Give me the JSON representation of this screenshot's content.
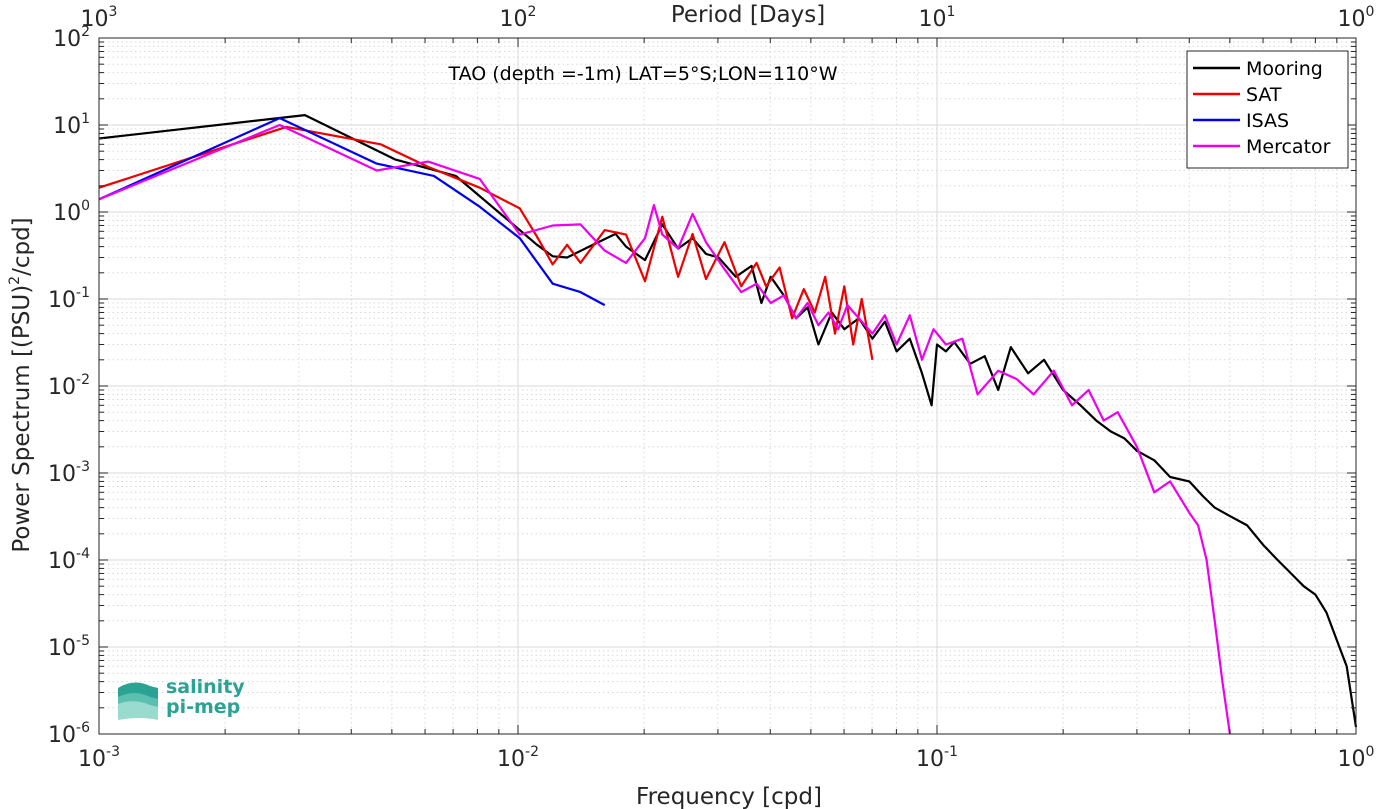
{
  "chart_data": {
    "type": "line",
    "title": "TAO (depth =-1m) LAT=5°S;LON=110°W",
    "xlabel": "Frequency [cpd]",
    "ylabel": "Power Spectrum [(PSU)",
    "ylabel_sup": "2",
    "ylabel_suffix": "/cpd]",
    "top_xlabel": "Period [Days]",
    "xscale": "log",
    "yscale": "log",
    "xlim": [
      0.001,
      1
    ],
    "ylim": [
      1e-06,
      100
    ],
    "grid": true,
    "legend_position": "top-right",
    "x_ticks": [
      {
        "base": "10",
        "exp": "-3"
      },
      {
        "base": "10",
        "exp": "-2"
      },
      {
        "base": "10",
        "exp": "-1"
      },
      {
        "base": "10",
        "exp": "0"
      }
    ],
    "top_ticks": [
      {
        "base": "10",
        "exp": "3"
      },
      {
        "base": "10",
        "exp": "2"
      },
      {
        "base": "10",
        "exp": "1"
      },
      {
        "base": "10",
        "exp": "0"
      }
    ],
    "y_ticks": [
      {
        "base": "10",
        "exp": "-6"
      },
      {
        "base": "10",
        "exp": "-5"
      },
      {
        "base": "10",
        "exp": "-4"
      },
      {
        "base": "10",
        "exp": "-3"
      },
      {
        "base": "10",
        "exp": "-2"
      },
      {
        "base": "10",
        "exp": "-1"
      },
      {
        "base": "10",
        "exp": "0"
      },
      {
        "base": "10",
        "exp": "1"
      },
      {
        "base": "10",
        "exp": "2"
      }
    ],
    "series": [
      {
        "name": "Mooring",
        "color": "#000000",
        "x": [
          0.001,
          0.0031,
          0.0051,
          0.0071,
          0.0101,
          0.0111,
          0.0121,
          0.0131,
          0.0151,
          0.0171,
          0.0181,
          0.0201,
          0.0221,
          0.0241,
          0.0261,
          0.0281,
          0.0301,
          0.0331,
          0.0361,
          0.0381,
          0.0401,
          0.0431,
          0.0461,
          0.0491,
          0.0521,
          0.0561,
          0.0601,
          0.0651,
          0.0701,
          0.0751,
          0.0801,
          0.0861,
          0.0921,
          0.0971,
          0.1,
          0.105,
          0.11,
          0.12,
          0.13,
          0.14,
          0.15,
          0.165,
          0.18,
          0.2,
          0.22,
          0.24,
          0.26,
          0.28,
          0.3,
          0.33,
          0.36,
          0.4,
          0.43,
          0.46,
          0.5,
          0.55,
          0.6,
          0.65,
          0.7,
          0.75,
          0.8,
          0.85,
          0.9,
          0.95,
          1.0
        ],
        "values": [
          7.0,
          13.0,
          4.0,
          2.6,
          0.62,
          0.42,
          0.31,
          0.3,
          0.42,
          0.56,
          0.4,
          0.28,
          0.72,
          0.38,
          0.5,
          0.33,
          0.3,
          0.18,
          0.24,
          0.09,
          0.18,
          0.11,
          0.06,
          0.08,
          0.03,
          0.07,
          0.045,
          0.06,
          0.035,
          0.055,
          0.025,
          0.035,
          0.014,
          0.006,
          0.03,
          0.025,
          0.032,
          0.018,
          0.022,
          0.009,
          0.028,
          0.014,
          0.02,
          0.009,
          0.006,
          0.004,
          0.003,
          0.0025,
          0.0018,
          0.0014,
          0.0009,
          0.0008,
          0.00055,
          0.0004,
          0.00032,
          0.00025,
          0.00015,
          0.0001,
          7e-05,
          5e-05,
          4e-05,
          2.5e-05,
          1.2e-05,
          6e-06,
          1.2e-06
        ]
      },
      {
        "name": "SAT",
        "color": "#ee0000",
        "x": [
          0.001,
          0.0028,
          0.0047,
          0.0061,
          0.0081,
          0.0101,
          0.0111,
          0.0121,
          0.0131,
          0.0141,
          0.0161,
          0.0181,
          0.0201,
          0.0221,
          0.0241,
          0.0261,
          0.0281,
          0.0311,
          0.0341,
          0.0371,
          0.0391,
          0.0421,
          0.0451,
          0.0481,
          0.0511,
          0.0541,
          0.0571,
          0.0601,
          0.0631,
          0.0661,
          0.0701
        ],
        "values": [
          1.9,
          9.5,
          6.0,
          3.3,
          1.9,
          1.1,
          0.52,
          0.25,
          0.42,
          0.26,
          0.62,
          0.55,
          0.16,
          0.88,
          0.18,
          0.56,
          0.17,
          0.45,
          0.14,
          0.26,
          0.14,
          0.23,
          0.06,
          0.13,
          0.07,
          0.18,
          0.04,
          0.14,
          0.03,
          0.1,
          0.02
        ]
      },
      {
        "name": "ISAS",
        "color": "#0000ee",
        "x": [
          0.001,
          0.0027,
          0.0046,
          0.0063,
          0.0081,
          0.0101,
          0.0121,
          0.0141,
          0.0161
        ],
        "values": [
          1.4,
          12.0,
          3.6,
          2.6,
          1.15,
          0.5,
          0.15,
          0.12,
          0.085
        ]
      },
      {
        "name": "Mercator",
        "color": "#ee00ee",
        "x": [
          0.001,
          0.0027,
          0.0046,
          0.0061,
          0.0081,
          0.0101,
          0.0121,
          0.0141,
          0.0161,
          0.0181,
          0.0201,
          0.0211,
          0.0221,
          0.0241,
          0.0261,
          0.0281,
          0.0311,
          0.0341,
          0.0371,
          0.0401,
          0.0431,
          0.0461,
          0.0491,
          0.0521,
          0.0551,
          0.0581,
          0.0611,
          0.0651,
          0.0701,
          0.0751,
          0.0801,
          0.0861,
          0.0921,
          0.0981,
          0.105,
          0.115,
          0.125,
          0.14,
          0.155,
          0.17,
          0.19,
          0.21,
          0.23,
          0.25,
          0.27,
          0.3,
          0.33,
          0.36,
          0.4,
          0.42,
          0.44,
          0.46,
          0.48,
          0.5
        ],
        "values": [
          1.4,
          10.0,
          3.0,
          3.8,
          2.4,
          0.55,
          0.7,
          0.72,
          0.36,
          0.26,
          0.5,
          1.2,
          0.55,
          0.38,
          0.95,
          0.45,
          0.22,
          0.12,
          0.15,
          0.09,
          0.11,
          0.06,
          0.09,
          0.05,
          0.07,
          0.045,
          0.085,
          0.06,
          0.04,
          0.065,
          0.03,
          0.065,
          0.02,
          0.045,
          0.03,
          0.035,
          0.008,
          0.015,
          0.012,
          0.008,
          0.015,
          0.006,
          0.009,
          0.004,
          0.005,
          0.002,
          0.0006,
          0.0008,
          0.00035,
          0.00025,
          0.0001,
          2e-05,
          4e-06,
          1e-06
        ]
      }
    ]
  },
  "logo": {
    "line1": "salinity",
    "line2": "pi-mep"
  }
}
